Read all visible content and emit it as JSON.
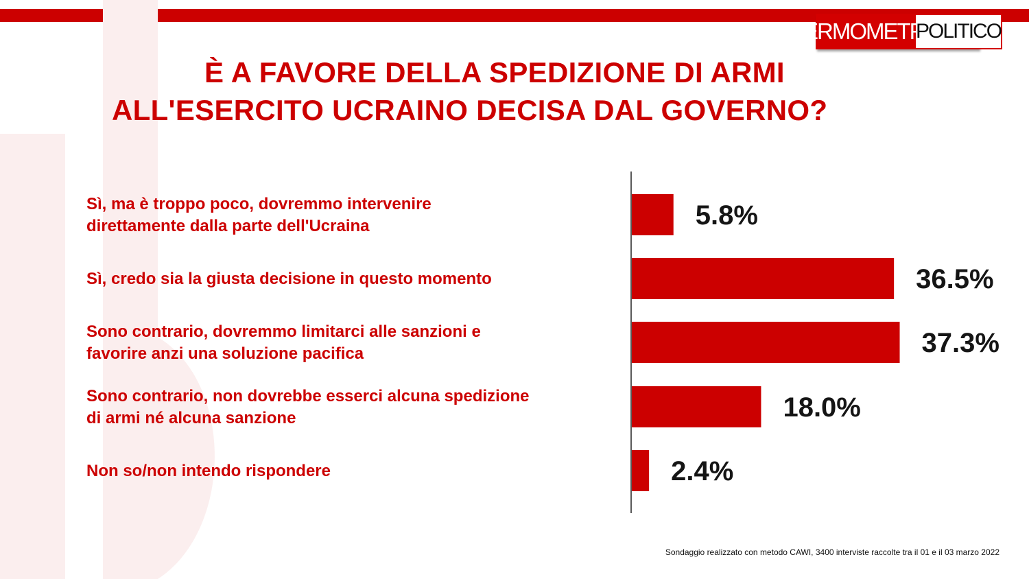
{
  "header": {
    "logo_part1": "TERMOMETRO",
    "logo_part2": "POLITICO",
    "title_line1": "È A FAVORE DELLA SPEDIZIONE DI ARMI",
    "title_line2": "ALL'ESERCITO UCRAINO DECISA DAL GOVERNO?"
  },
  "colors": {
    "accent": "#cc0000",
    "bar": "#cc0000",
    "value_text": "#151515"
  },
  "chart_data": {
    "type": "bar",
    "orientation": "horizontal",
    "categories": [
      [
        "Sì, ma è troppo poco, dovremmo intervenire",
        "direttamente dalla parte dell'Ucraina"
      ],
      [
        "Sì, credo sia la giusta decisione in questo momento"
      ],
      [
        "Sono contrario, dovremmo limitarci alle sanzioni e",
        "favorire anzi una soluzione pacifica"
      ],
      [
        "Sono contrario, non dovrebbe esserci alcuna spedizione",
        "di armi né alcuna sanzione"
      ],
      [
        "Non so/non intendo rispondere"
      ]
    ],
    "values": [
      5.8,
      36.5,
      37.3,
      18.0,
      2.4
    ],
    "value_labels": [
      "5.8%",
      "36.5%",
      "37.3%",
      "18.0%",
      "2.4%"
    ],
    "xlim": [
      0,
      40
    ],
    "grid": false,
    "legend": false
  },
  "footnote": "Sondaggio realizzato con metodo CAWI, 3400 interviste raccolte tra il 01 e il 03 marzo 2022"
}
